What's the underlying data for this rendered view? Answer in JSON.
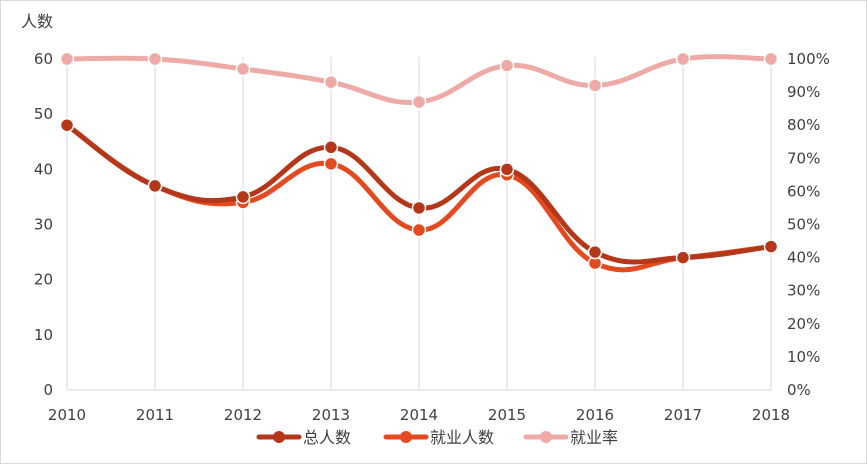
{
  "chart_data": {
    "type": "line",
    "title": "",
    "y_left_label": "人数",
    "y_right_label": "",
    "categories": [
      "2010",
      "2011",
      "2012",
      "2013",
      "2014",
      "2015",
      "2016",
      "2017",
      "2018"
    ],
    "y_left_ticks": [
      "0",
      "10",
      "20",
      "30",
      "40",
      "50",
      "60"
    ],
    "y_right_ticks": [
      "0%",
      "10%",
      "20%",
      "30%",
      "40%",
      "50%",
      "60%",
      "70%",
      "80%",
      "90%",
      "100%"
    ],
    "y_left_lim": [
      0,
      60
    ],
    "y_right_lim": [
      0,
      1
    ],
    "grid": "vertical",
    "legend_position": "bottom",
    "series": [
      {
        "name": "总人数",
        "axis": "left",
        "color": "#b5371a",
        "values": [
          48,
          37,
          35,
          44,
          33,
          40,
          25,
          24,
          26
        ]
      },
      {
        "name": "就业人数",
        "axis": "left",
        "color": "#e34a20",
        "values": [
          48,
          37,
          34,
          41,
          29,
          39,
          23,
          24,
          26
        ]
      },
      {
        "name": "就业率",
        "axis": "right",
        "color": "#eeaaa6",
        "values": [
          1.0,
          1.0,
          0.97,
          0.93,
          0.87,
          0.98,
          0.92,
          1.0,
          1.0
        ]
      }
    ]
  }
}
